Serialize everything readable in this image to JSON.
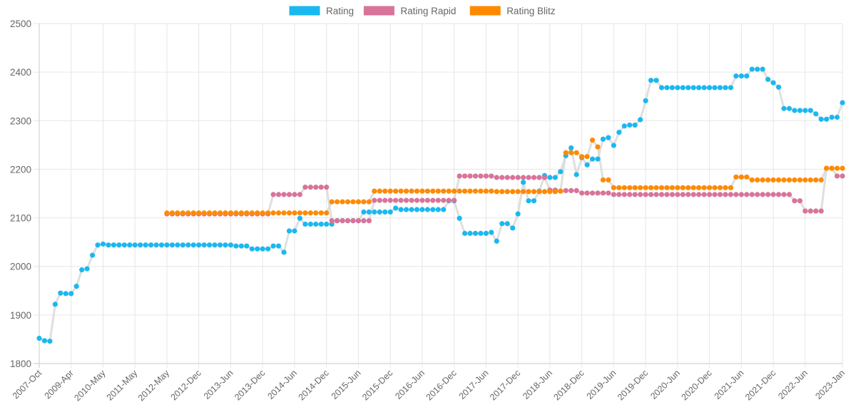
{
  "chart_data": {
    "type": "line",
    "title": "",
    "xlabel": "",
    "ylabel": "",
    "ylim": [
      1800,
      2500
    ],
    "y_ticks": [
      1800,
      1900,
      2000,
      2100,
      2200,
      2300,
      2400,
      2500
    ],
    "grid": true,
    "legend_position": "top",
    "line_color": "#d9d9d9",
    "x_tick_labels": [
      "2007-Oct",
      "2009-Apr",
      "2010-May",
      "2011-May",
      "2012-May",
      "2012-Dec",
      "2013-Jun",
      "2013-Dec",
      "2014-Jun",
      "2014-Dec",
      "2015-Jun",
      "2015-Dec",
      "2016-Jun",
      "2016-Dec",
      "2017-Jun",
      "2017-Dec",
      "2018-Jun",
      "2018-Dec",
      "2019-Jun",
      "2019-Dec",
      "2020-Jun",
      "2020-Dec",
      "2021-Jun",
      "2021-Dec",
      "2022-Jun",
      "2023-Jan"
    ],
    "categories": [
      "2007-Oct",
      "2008-Jan",
      "2008-Apr",
      "2008-Jul",
      "2008-Oct",
      "2009-Jan",
      "2009-Apr",
      "2009-Jul",
      "2009-Sep",
      "2009-Nov",
      "2010-Jan",
      "2010-Mar",
      "2010-May",
      "2010-Jul",
      "2010-Sep",
      "2010-Nov",
      "2011-Jan",
      "2011-Mar",
      "2011-May",
      "2011-Jul",
      "2011-Sep",
      "2011-Nov",
      "2012-Jan",
      "2012-Mar",
      "2012-May",
      "2012-Jul",
      "2012-Aug",
      "2012-Sep",
      "2012-Oct",
      "2012-Nov",
      "2012-Dec",
      "2013-Jan",
      "2013-Feb",
      "2013-Mar",
      "2013-Apr",
      "2013-May",
      "2013-Jun",
      "2013-Jul",
      "2013-Aug",
      "2013-Sep",
      "2013-Oct",
      "2013-Nov",
      "2013-Dec",
      "2014-Jan",
      "2014-Feb",
      "2014-Mar",
      "2014-Apr",
      "2014-May",
      "2014-Jun",
      "2014-Jul",
      "2014-Aug",
      "2014-Sep",
      "2014-Oct",
      "2014-Nov",
      "2014-Dec",
      "2015-Jan",
      "2015-Feb",
      "2015-Mar",
      "2015-Apr",
      "2015-May",
      "2015-Jun",
      "2015-Jul",
      "2015-Aug",
      "2015-Sep",
      "2015-Oct",
      "2015-Nov",
      "2015-Dec",
      "2016-Jan",
      "2016-Feb",
      "2016-Mar",
      "2016-Apr",
      "2016-May",
      "2016-Jun",
      "2016-Jul",
      "2016-Aug",
      "2016-Sep",
      "2016-Oct",
      "2016-Nov",
      "2016-Dec",
      "2017-Jan",
      "2017-Feb",
      "2017-Mar",
      "2017-Apr",
      "2017-May",
      "2017-Jun",
      "2017-Jul",
      "2017-Aug",
      "2017-Sep",
      "2017-Oct",
      "2017-Nov",
      "2017-Dec",
      "2018-Jan",
      "2018-Feb",
      "2018-Mar",
      "2018-Apr",
      "2018-May",
      "2018-Jun",
      "2018-Jul",
      "2018-Aug",
      "2018-Sep",
      "2018-Oct",
      "2018-Nov",
      "2018-Dec",
      "2019-Jan",
      "2019-Feb",
      "2019-Mar",
      "2019-Apr",
      "2019-May",
      "2019-Jun",
      "2019-Jul",
      "2019-Aug",
      "2019-Sep",
      "2019-Oct",
      "2019-Nov",
      "2019-Dec",
      "2020-Jan",
      "2020-Feb",
      "2020-Mar",
      "2020-Apr",
      "2020-May",
      "2020-Jun",
      "2020-Jul",
      "2020-Aug",
      "2020-Sep",
      "2020-Oct",
      "2020-Nov",
      "2020-Dec",
      "2021-Jan",
      "2021-Feb",
      "2021-Mar",
      "2021-Apr",
      "2021-May",
      "2021-Jun",
      "2021-Jul",
      "2021-Aug",
      "2021-Sep",
      "2021-Oct",
      "2021-Nov",
      "2021-Dec",
      "2022-Jan",
      "2022-Feb",
      "2022-Mar",
      "2022-Apr",
      "2022-May",
      "2022-Jun",
      "2022-Jul",
      "2022-Aug",
      "2022-Sep",
      "2022-Oct",
      "2022-Nov",
      "2022-Dec",
      "2023-Jan"
    ],
    "series": [
      {
        "name": "Rating",
        "color": "#1ab8f0",
        "values": [
          1852,
          1847,
          1846,
          1922,
          1945,
          1944,
          1944,
          1959,
          1993,
          1995,
          2023,
          2044,
          2046,
          2044,
          2044,
          2044,
          2044,
          2044,
          2044,
          2044,
          2044,
          2044,
          2044,
          2044,
          2044,
          2044,
          2044,
          2044,
          2044,
          2044,
          2044,
          2044,
          2044,
          2044,
          2044,
          2044,
          2044,
          2042,
          2042,
          2042,
          2036,
          2036,
          2036,
          2036,
          2042,
          2042,
          2029,
          2073,
          2073,
          2099,
          2087,
          2087,
          2087,
          2087,
          2087,
          2087,
          2094,
          2094,
          2094,
          2094,
          2094,
          2112,
          2112,
          2112,
          2112,
          2112,
          2112,
          2120,
          2117,
          2117,
          2117,
          2117,
          2117,
          2117,
          2117,
          2117,
          2117,
          2135,
          2135,
          2099,
          2068,
          2068,
          2068,
          2068,
          2068,
          2070,
          2052,
          2088,
          2088,
          2079,
          2108,
          2173,
          2135,
          2135,
          2155,
          2187,
          2183,
          2183,
          2195,
          2228,
          2244,
          2189,
          2224,
          2209,
          2221,
          2221,
          2262,
          2265,
          2249,
          2276,
          2289,
          2291,
          2291,
          2302,
          2341,
          2383,
          2383,
          2368,
          2368,
          2368,
          2368,
          2368,
          2368,
          2368,
          2368,
          2368,
          2368,
          2368,
          2368,
          2368,
          2368,
          2392,
          2392,
          2392,
          2406,
          2406,
          2406,
          2385,
          2378,
          2369,
          2325,
          2325,
          2321,
          2321,
          2321,
          2321,
          2314,
          2303,
          2303,
          2307,
          2307,
          2337
        ]
      },
      {
        "name": "Rating Rapid",
        "color": "#d9739a",
        "values": [
          null,
          null,
          null,
          null,
          null,
          null,
          null,
          null,
          null,
          null,
          null,
          null,
          null,
          null,
          null,
          null,
          null,
          null,
          null,
          null,
          null,
          null,
          null,
          null,
          2108,
          2108,
          2108,
          2108,
          2108,
          2108,
          2108,
          2108,
          2108,
          2108,
          2108,
          2108,
          2108,
          2108,
          2108,
          2108,
          2108,
          2108,
          2108,
          2108,
          2148,
          2148,
          2148,
          2148,
          2148,
          2148,
          2163,
          2163,
          2163,
          2163,
          2163,
          2094,
          2094,
          2094,
          2094,
          2094,
          2094,
          2094,
          2094,
          2136,
          2136,
          2136,
          2136,
          2136,
          2136,
          2136,
          2136,
          2136,
          2136,
          2136,
          2136,
          2136,
          2136,
          2136,
          2136,
          2186,
          2186,
          2186,
          2186,
          2186,
          2186,
          2186,
          2183,
          2183,
          2183,
          2183,
          2183,
          2183,
          2183,
          2183,
          2183,
          2183,
          2157,
          2157,
          2155,
          2156,
          2156,
          2156,
          2151,
          2151,
          2151,
          2151,
          2151,
          2151,
          2148,
          2148,
          2148,
          2148,
          2148,
          2148,
          2148,
          2148,
          2148,
          2148,
          2148,
          2148,
          2148,
          2148,
          2148,
          2148,
          2148,
          2148,
          2148,
          2148,
          2148,
          2148,
          2148,
          2148,
          2148,
          2148,
          2148,
          2148,
          2148,
          2148,
          2148,
          2148,
          2148,
          2148,
          2135,
          2135,
          2114,
          2114,
          2114,
          2114,
          2202,
          2202,
          2186,
          2186
        ]
      },
      {
        "name": "Rating Blitz",
        "color": "#ff8a00",
        "values": [
          null,
          null,
          null,
          null,
          null,
          null,
          null,
          null,
          null,
          null,
          null,
          null,
          null,
          null,
          null,
          null,
          null,
          null,
          null,
          null,
          null,
          null,
          null,
          null,
          2110,
          2110,
          2110,
          2110,
          2110,
          2110,
          2110,
          2110,
          2110,
          2110,
          2110,
          2110,
          2110,
          2110,
          2110,
          2110,
          2110,
          2110,
          2110,
          2110,
          2110,
          2110,
          2110,
          2110,
          2110,
          2110,
          2110,
          2110,
          2110,
          2110,
          2110,
          2133,
          2133,
          2133,
          2133,
          2133,
          2133,
          2133,
          2133,
          2155,
          2155,
          2155,
          2155,
          2155,
          2155,
          2155,
          2155,
          2155,
          2155,
          2155,
          2155,
          2155,
          2155,
          2155,
          2155,
          2155,
          2155,
          2155,
          2155,
          2155,
          2155,
          2155,
          2154,
          2154,
          2154,
          2154,
          2154,
          2154,
          2154,
          2154,
          2154,
          2154,
          2154,
          2154,
          2155,
          2234,
          2234,
          2234,
          2226,
          2226,
          2260,
          2246,
          2178,
          2178,
          2162,
          2162,
          2162,
          2162,
          2162,
          2162,
          2162,
          2162,
          2162,
          2162,
          2162,
          2162,
          2162,
          2162,
          2162,
          2162,
          2162,
          2162,
          2162,
          2162,
          2162,
          2162,
          2162,
          2184,
          2184,
          2184,
          2178,
          2178,
          2178,
          2178,
          2178,
          2178,
          2178,
          2178,
          2178,
          2178,
          2178,
          2178,
          2178,
          2178,
          2202,
          2202,
          2202,
          2202
        ]
      }
    ]
  }
}
